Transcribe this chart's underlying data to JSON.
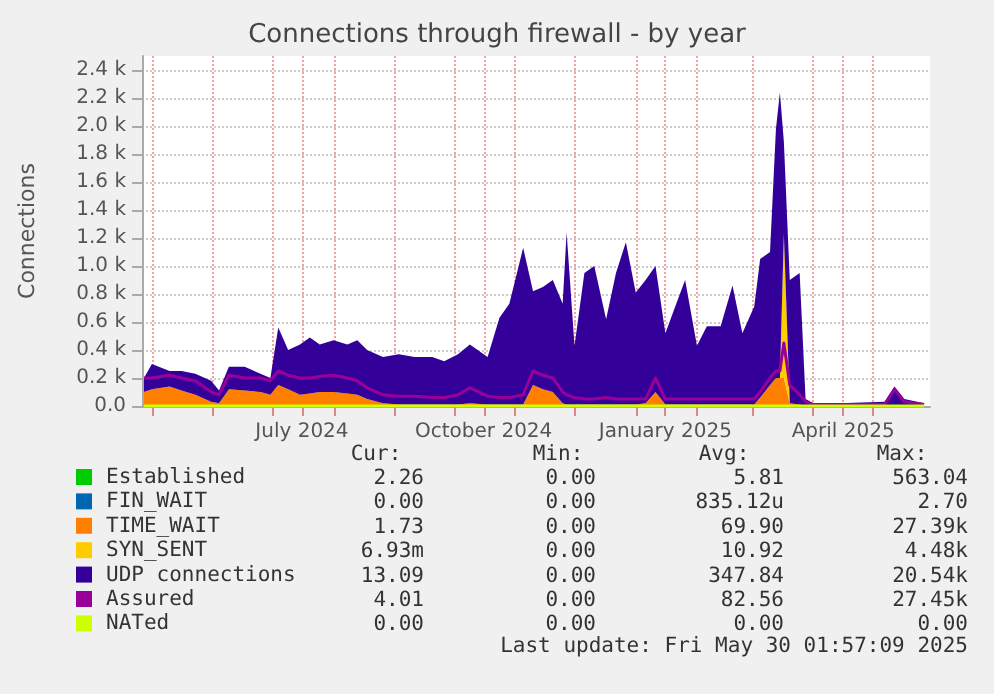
{
  "chart_data": {
    "type": "area",
    "stacked": true,
    "title": "Connections through firewall - by year",
    "ylabel": "Connections",
    "xlim": [
      "2024-04-26",
      "2025-05-30"
    ],
    "xticks": [
      {
        "value": "2024-05-01",
        "label": null
      },
      {
        "value": "2024-06-01",
        "label": null
      },
      {
        "value": "2024-07-01",
        "label": null
      },
      {
        "value": "2024-07-16",
        "label": "July 2024"
      },
      {
        "value": "2024-08-01",
        "label": null
      },
      {
        "value": "2024-09-01",
        "label": null
      },
      {
        "value": "2024-10-01",
        "label": null
      },
      {
        "value": "2024-10-16",
        "label": "October 2024"
      },
      {
        "value": "2024-11-01",
        "label": null
      },
      {
        "value": "2024-12-01",
        "label": null
      },
      {
        "value": "2025-01-01",
        "label": null
      },
      {
        "value": "2025-01-16",
        "label": "January 2025"
      },
      {
        "value": "2025-02-01",
        "label": null
      },
      {
        "value": "2025-03-01",
        "label": null
      },
      {
        "value": "2025-04-01",
        "label": null
      },
      {
        "value": "2025-04-16",
        "label": "April 2025"
      },
      {
        "value": "2025-05-01",
        "label": null
      }
    ],
    "ylim": [
      0,
      2500
    ],
    "yticks": [
      {
        "value": 0,
        "label": "0.0"
      },
      {
        "value": 200,
        "label": "0.2 k"
      },
      {
        "value": 400,
        "label": "0.4 k"
      },
      {
        "value": 600,
        "label": "0.6 k"
      },
      {
        "value": 800,
        "label": "0.8 k"
      },
      {
        "value": 1000,
        "label": "1.0 k"
      },
      {
        "value": 1200,
        "label": "1.2 k"
      },
      {
        "value": 1400,
        "label": "1.4 k"
      },
      {
        "value": 1600,
        "label": "1.6 k"
      },
      {
        "value": 1800,
        "label": "1.8 k"
      },
      {
        "value": 2000,
        "label": "2.0 k"
      },
      {
        "value": 2200,
        "label": "2.2 k"
      },
      {
        "value": 2400,
        "label": "2.4 k"
      }
    ],
    "grid": true,
    "legend": "bottom left",
    "x": [
      "2024-04-27",
      "2024-05-01",
      "2024-05-10",
      "2024-05-16",
      "2024-05-23",
      "2024-05-31",
      "2024-06-04",
      "2024-06-09",
      "2024-06-17",
      "2024-06-25",
      "2024-06-30",
      "2024-07-04",
      "2024-07-09",
      "2024-07-15",
      "2024-07-20",
      "2024-07-25",
      "2024-08-01",
      "2024-08-08",
      "2024-08-13",
      "2024-08-18",
      "2024-08-26",
      "2024-09-03",
      "2024-09-11",
      "2024-09-20",
      "2024-09-26",
      "2024-10-03",
      "2024-10-09",
      "2024-10-18",
      "2024-10-24",
      "2024-10-29",
      "2024-11-05",
      "2024-11-10",
      "2024-11-15",
      "2024-11-20",
      "2024-11-25",
      "2024-11-27",
      "2024-12-01",
      "2024-12-06",
      "2024-12-11",
      "2024-12-17",
      "2024-12-22",
      "2024-12-27",
      "2025-01-01",
      "2025-01-06",
      "2025-01-11",
      "2025-01-16",
      "2025-01-21",
      "2025-01-26",
      "2025-02-01",
      "2025-02-06",
      "2025-02-13",
      "2025-02-19",
      "2025-02-24",
      "2025-03-02",
      "2025-03-05",
      "2025-03-10",
      "2025-03-13",
      "2025-03-15",
      "2025-03-17",
      "2025-03-20",
      "2025-03-25",
      "2025-03-28",
      "2025-04-01",
      "2025-04-11",
      "2025-04-14",
      "2025-05-07",
      "2025-05-12",
      "2025-05-17",
      "2025-05-27"
    ],
    "series": [
      {
        "name": "Established",
        "color": "#00cc00",
        "values": [
          null,
          null,
          null,
          null,
          null,
          null,
          null,
          null,
          null,
          null,
          null,
          null,
          null,
          null,
          null,
          null,
          null,
          null,
          null,
          null,
          null,
          null,
          null,
          null,
          null,
          null,
          null,
          null,
          null,
          null,
          null,
          null,
          null,
          null,
          null,
          null,
          null,
          null,
          null,
          null,
          null,
          null,
          null,
          null,
          null,
          null,
          null,
          null,
          null,
          null,
          null,
          null,
          null,
          null,
          null,
          null,
          null,
          null,
          null,
          null,
          null,
          null,
          null,
          null,
          null,
          null,
          null,
          null,
          null
        ]
      },
      {
        "name": "FIN_WAIT",
        "color": "#0066b3",
        "values": [
          null,
          null,
          null,
          null,
          null,
          null,
          null,
          null,
          null,
          null,
          null,
          null,
          null,
          null,
          null,
          null,
          null,
          null,
          null,
          null,
          null,
          null,
          null,
          null,
          null,
          null,
          null,
          null,
          null,
          null,
          null,
          null,
          null,
          null,
          null,
          null,
          null,
          null,
          null,
          null,
          null,
          null,
          null,
          null,
          null,
          null,
          null,
          null,
          null,
          null,
          null,
          null,
          null,
          null,
          null,
          null,
          null,
          null,
          null,
          null,
          null,
          null,
          null,
          null,
          null,
          null,
          null,
          null,
          null
        ]
      },
      {
        "name": "TIME_WAIT",
        "color": "#ff8000",
        "values": [
          100,
          120,
          140,
          110,
          80,
          30,
          20,
          120,
          110,
          100,
          80,
          150,
          120,
          80,
          90,
          100,
          100,
          90,
          80,
          50,
          20,
          10,
          10,
          10,
          10,
          10,
          20,
          10,
          10,
          10,
          10,
          150,
          120,
          100,
          20,
          10,
          10,
          10,
          10,
          10,
          10,
          10,
          10,
          20,
          100,
          10,
          10,
          10,
          10,
          10,
          10,
          10,
          10,
          10,
          60,
          150,
          200,
          200,
          200,
          20,
          10,
          0,
          0,
          0,
          0,
          0,
          0,
          0,
          0
        ]
      },
      {
        "name": "SYN_SENT",
        "color": "#ffcc00",
        "values": [
          0,
          0,
          0,
          0,
          0,
          0,
          0,
          0,
          0,
          0,
          0,
          0,
          0,
          0,
          0,
          0,
          0,
          0,
          0,
          0,
          0,
          0,
          0,
          0,
          0,
          0,
          0,
          0,
          0,
          0,
          0,
          0,
          0,
          0,
          0,
          0,
          0,
          0,
          0,
          0,
          0,
          0,
          0,
          0,
          0,
          0,
          0,
          0,
          0,
          0,
          0,
          0,
          0,
          0,
          0,
          0,
          0,
          0,
          1030,
          0,
          0,
          0,
          0,
          0,
          0,
          0,
          0,
          0,
          0
        ]
      },
      {
        "name": "UDP connections",
        "color": "#330099",
        "values": [
          100,
          180,
          110,
          140,
          150,
          150,
          90,
          160,
          170,
          130,
          120,
          410,
          280,
          360,
          400,
          340,
          370,
          350,
          390,
          350,
          330,
          360,
          340,
          340,
          310,
          360,
          420,
          340,
          620,
          720,
          1120,
          670,
          730,
          800,
          710,
          1230,
          420,
          940,
          990,
          610,
          940,
          1160,
          800,
          880,
          900,
          510,
          700,
          890,
          420,
          560,
          560,
          850,
          510,
          700,
          990,
          950,
          1780,
          2040,
          660,
          880,
          940,
          50,
          20,
          0,
          20,
          30,
          140,
          50,
          20
        ]
      },
      {
        "name": "Assured",
        "color": "#990099",
        "type": "line",
        "values": [
          200,
          200,
          220,
          200,
          180,
          100,
          80,
          220,
          200,
          200,
          180,
          250,
          220,
          200,
          200,
          210,
          220,
          200,
          180,
          130,
          80,
          70,
          70,
          60,
          60,
          80,
          130,
          70,
          60,
          60,
          80,
          250,
          220,
          200,
          100,
          80,
          60,
          50,
          50,
          60,
          50,
          50,
          50,
          50,
          200,
          50,
          50,
          50,
          50,
          50,
          50,
          50,
          50,
          50,
          100,
          200,
          250,
          250,
          450,
          150,
          80,
          30,
          10,
          10,
          10,
          10,
          120,
          30,
          10
        ]
      },
      {
        "name": "NATed",
        "color": "#ccff00",
        "type": "line",
        "values": [
          0,
          0,
          0,
          0,
          0,
          0,
          0,
          0,
          0,
          0,
          0,
          0,
          0,
          0,
          0,
          0,
          0,
          0,
          0,
          0,
          0,
          0,
          0,
          0,
          0,
          0,
          0,
          0,
          0,
          0,
          0,
          0,
          0,
          0,
          0,
          0,
          0,
          0,
          0,
          0,
          0,
          0,
          0,
          0,
          0,
          0,
          0,
          0,
          0,
          0,
          0,
          0,
          0,
          0,
          0,
          0,
          0,
          0,
          0,
          0,
          0,
          0,
          0,
          0,
          0,
          0,
          0,
          0,
          0
        ]
      }
    ],
    "annotations": [
      "Cur:",
      "Min:",
      "Avg:",
      "Max:",
      "2.26",
      "0.00",
      "5.81",
      "563.04",
      "0.00",
      "0.00",
      "835.12u",
      "2.70",
      "1.73",
      "0.00",
      "69.90",
      "27.39k",
      "6.93m",
      "0.00",
      "10.92",
      "4.48k",
      "13.09",
      "0.00",
      "347.84",
      "20.54k",
      "4.01",
      "0.00",
      "82.56",
      "27.45k",
      "0.00",
      "0.00",
      "0.00",
      "0.00",
      "Last update: Fri May 30 01:57:09 2025"
    ]
  }
}
